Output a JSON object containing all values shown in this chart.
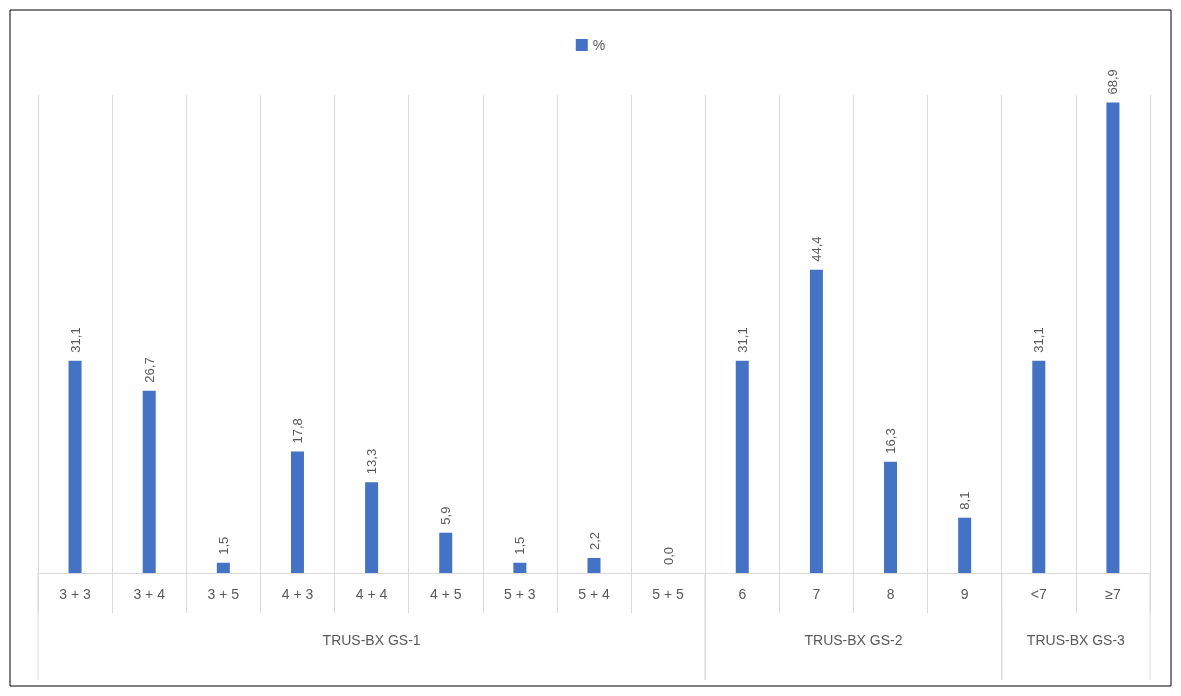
{
  "chart_data": {
    "type": "bar",
    "categories": [
      "3 + 3",
      "3 + 4",
      "3 + 5",
      "4 + 3",
      "4 + 4",
      "4 + 5",
      "5 + 3",
      "5 + 4",
      "5 + 5",
      "6",
      "7",
      "8",
      "9",
      "<7",
      "≥7"
    ],
    "series": [
      {
        "name": "%",
        "color": "#4472c4",
        "values": [
          31.1,
          26.7,
          1.5,
          17.8,
          13.3,
          5.9,
          1.5,
          2.2,
          0.0,
          31.1,
          44.4,
          16.3,
          8.1,
          31.1,
          68.9
        ],
        "value_labels": [
          "31,1",
          "26,7",
          "1,5",
          "17,8",
          "13,3",
          "5,9",
          "1,5",
          "2,2",
          "0,0",
          "31,1",
          "44,4",
          "16,3",
          "8,1",
          "31,1",
          "68,9"
        ]
      }
    ],
    "annotations": [
      "TRUS-BX GS-1",
      "TRUS-BX GS-2",
      "TRUS-BX GS-3"
    ],
    "grid": "x",
    "legend": "top"
  }
}
